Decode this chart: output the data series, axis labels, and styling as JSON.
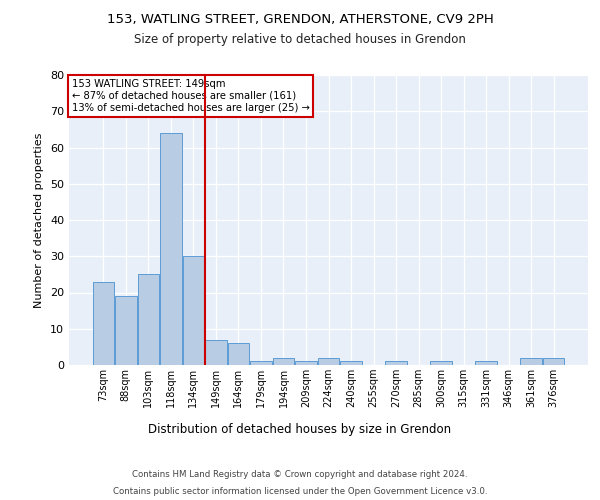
{
  "title1": "153, WATLING STREET, GRENDON, ATHERSTONE, CV9 2PH",
  "title2": "Size of property relative to detached houses in Grendon",
  "xlabel": "Distribution of detached houses by size in Grendon",
  "ylabel": "Number of detached properties",
  "categories": [
    "73sqm",
    "88sqm",
    "103sqm",
    "118sqm",
    "134sqm",
    "149sqm",
    "164sqm",
    "179sqm",
    "194sqm",
    "209sqm",
    "224sqm",
    "240sqm",
    "255sqm",
    "270sqm",
    "285sqm",
    "300sqm",
    "315sqm",
    "331sqm",
    "346sqm",
    "361sqm",
    "376sqm"
  ],
  "values": [
    23,
    19,
    25,
    64,
    30,
    7,
    6,
    1,
    2,
    1,
    2,
    1,
    0,
    1,
    0,
    1,
    0,
    1,
    0,
    2,
    2
  ],
  "bar_color": "#b8cce4",
  "bar_edge_color": "#5b9bd5",
  "vline_index": 4.5,
  "annotation_line1": "153 WATLING STREET: 149sqm",
  "annotation_line2": "← 87% of detached houses are smaller (161)",
  "annotation_line3": "13% of semi-detached houses are larger (25) →",
  "annotation_box_facecolor": "#ffffff",
  "annotation_box_edgecolor": "#cc0000",
  "vline_color": "#cc0000",
  "ylim_max": 80,
  "yticks": [
    0,
    10,
    20,
    30,
    40,
    50,
    60,
    70,
    80
  ],
  "plot_bg_color": "#e8eff8",
  "grid_color": "#ffffff",
  "footer1": "Contains HM Land Registry data © Crown copyright and database right 2024.",
  "footer2": "Contains public sector information licensed under the Open Government Licence v3.0."
}
